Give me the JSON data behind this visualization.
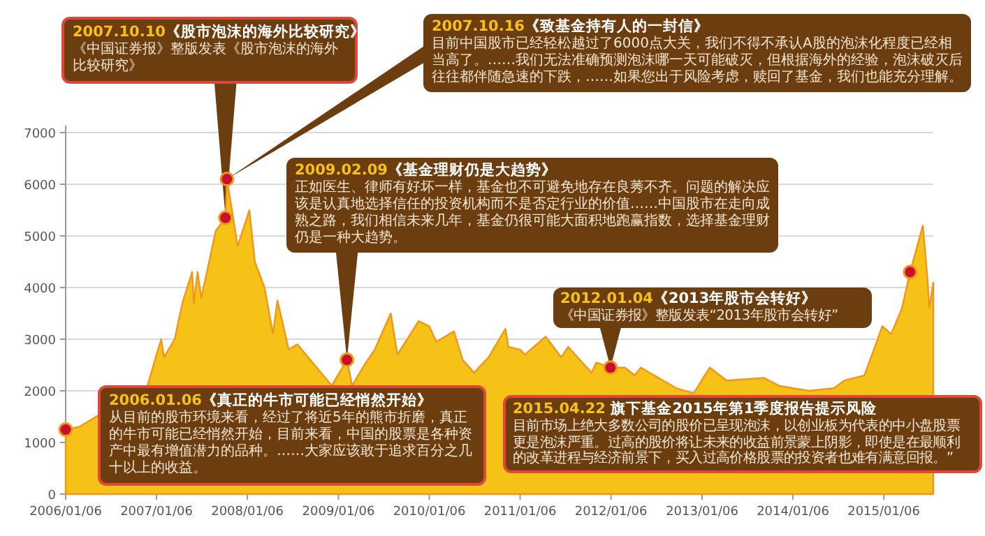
{
  "chart_data": {
    "type": "area",
    "x": [
      "2006-01-06",
      "2006-03-01",
      "2006-12-01",
      "2007-01-06",
      "2007-01-25",
      "2007-02-05",
      "2007-03-20",
      "2007-04-20",
      "2007-05-29",
      "2007-06-05",
      "2007-06-20",
      "2007-07-05",
      "2007-08-01",
      "2007-09-01",
      "2007-10-10",
      "2007-10-16",
      "2007-11-05",
      "2007-11-28",
      "2008-01-14",
      "2008-02-05",
      "2008-03-15",
      "2008-04-18",
      "2008-05-06",
      "2008-06-20",
      "2008-07-25",
      "2008-12-10",
      "2009-02-09",
      "2009-03-02",
      "2009-04-20",
      "2009-06-01",
      "2009-08-04",
      "2009-08-31",
      "2009-11-24",
      "2010-01-06",
      "2010-02-03",
      "2010-04-15",
      "2010-05-20",
      "2010-07-05",
      "2010-09-01",
      "2010-11-08",
      "2010-11-20",
      "2011-01-06",
      "2011-01-25",
      "2011-04-18",
      "2011-06-20",
      "2011-07-18",
      "2011-10-20",
      "2011-11-08",
      "2012-01-04",
      "2012-03-02",
      "2012-04-10",
      "2012-05-05",
      "2012-09-25",
      "2012-12-03",
      "2013-02-06",
      "2013-04-15",
      "2013-09-12",
      "2013-11-10",
      "2014-01-06",
      "2014-03-12",
      "2014-06-20",
      "2014-08-01",
      "2014-10-20",
      "2014-12-05",
      "2014-12-31",
      "2015-02-05",
      "2015-03-20",
      "2015-04-22",
      "2015-06-12",
      "2015-06-30",
      "2015-07-08",
      "2015-07-24"
    ],
    "series": [
      {
        "color": "#f7c217",
        "values": [
          1250,
          1300,
          2100,
          2700,
          3000,
          2650,
          3000,
          3700,
          4300,
          3700,
          4300,
          3800,
          4400,
          5100,
          5350,
          6100,
          5500,
          4800,
          5500,
          4500,
          4000,
          3100,
          3750,
          2800,
          2900,
          2100,
          2600,
          2100,
          2500,
          2800,
          3500,
          2700,
          3350,
          3250,
          2950,
          3150,
          2600,
          2350,
          2650,
          3200,
          2850,
          2800,
          2700,
          3050,
          2650,
          2850,
          2350,
          2550,
          2450,
          2450,
          2300,
          2450,
          2050,
          1950,
          2450,
          2200,
          2250,
          2100,
          2050,
          2000,
          2050,
          2200,
          2300,
          2900,
          3250,
          3100,
          3600,
          4300,
          5200,
          4200,
          3600,
          4100
        ]
      },
      {
        "type": "scatter",
        "color": "#c8102e",
        "x": [
          "2006-01-06",
          "2007-10-10",
          "2007-10-16",
          "2009-02-09",
          "2012-01-04",
          "2015-04-22"
        ],
        "values": [
          1250,
          5350,
          6100,
          2600,
          2450,
          4300
        ]
      }
    ],
    "xlim": [
      "2006-01-06",
      "2015-07-24"
    ],
    "xticks": [
      {
        "value": "2006-01-06",
        "label": "2006/01/06"
      },
      {
        "value": "2007-01-06",
        "label": "2007/01/06"
      },
      {
        "value": "2008-01-06",
        "label": "2008/01/06"
      },
      {
        "value": "2009-01-06",
        "label": "2009/01/06"
      },
      {
        "value": "2010-01-06",
        "label": "2010/01/06"
      },
      {
        "value": "2011-01-06",
        "label": "2011/01/06"
      },
      {
        "value": "2012-01-06",
        "label": "2012/01/06"
      },
      {
        "value": "2013-01-06",
        "label": "2013/01/06"
      },
      {
        "value": "2014-01-06",
        "label": "2014/01/06"
      },
      {
        "value": "2015-01-06",
        "label": "2015/01/06"
      }
    ],
    "ylim": [
      0,
      7000
    ],
    "yticks": [
      0,
      1000,
      2000,
      3000,
      4000,
      5000,
      6000,
      7000
    ],
    "grid": "y",
    "annotations": [
      "2006.01.06《真正的牛市可能已经悄然开始》",
      "从目前的股市环境来看，经过了将近5年的熊市折磨，真正的牛市可能已经悄然开始，目前来看，中国的股票是各种资产中最有增值潜力的品种。……大家应该敢于追求百分之几十以上的收益。",
      "2007.10.10《股市泡沫的海外比较研究》",
      "《中国证券报》整版发表《股市泡沫的海外比较研究》",
      "2007.10.16《致基金持有人的一封信》",
      "目前中国股市已经轻松越过了6000点大关，我们不得不承认A股的泡沫化程度已经相当高了。……我们无法准确预测泡沫哪一天可能破灭，但根据海外的经验，泡沫破灭后往往都伴随急速的下跌，……如果您出于风险考虑，赎回了基金，我们也能充分理解。",
      "2009.02.09《基金理财仍是大趋势》",
      "正如医生、律师有好坏一样，基金也不可避免地存在良莠不齐。问题的解决应该是认真地选择信任的投资机构而不是否定行业的价值……中国股市在走向成熟之路，我们相信未来几年，基金仍很可能大面积地跑赢指数，选择基金理财仍是一种大趋势。",
      "2012.01.04《2013年股市会转好》",
      "《中国证券报》整版发表“2013年股市会转好”",
      "2015.04.22 旗下基金2015年第1季度报告提示风险",
      "目前市场上绝大多数公司的股价已呈现泡沫，以创业板为代表的中小盘股票更是泡沫严重。过高的股价将让未来的收益前景蒙上阴影，即使是在最顺利的改革进程与经济前景下，买入过高价格股票的投资者也难有满意回报。”"
    ]
  }
}
